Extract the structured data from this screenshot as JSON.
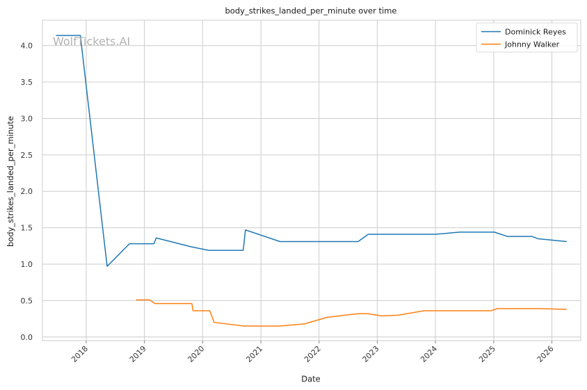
{
  "chart_data": {
    "type": "line",
    "title": "body_strikes_landed_per_minute over time",
    "xlabel": "Date",
    "ylabel": "body_strikes_landed_per_minute",
    "x_ticks": [
      "2018",
      "2019",
      "2020",
      "2021",
      "2022",
      "2023",
      "2024",
      "2025",
      "2026"
    ],
    "y_ticks": [
      "0.0",
      "0.5",
      "1.0",
      "1.5",
      "2.0",
      "2.5",
      "3.0",
      "3.5",
      "4.0"
    ],
    "xlim": [
      "2017-04-01",
      "2026-07-01"
    ],
    "ylim": [
      -0.05,
      4.35
    ],
    "grid": true,
    "legend_position": "top-right",
    "watermark": "WolfTickets.AI",
    "series": [
      {
        "name": "Dominick Reyes",
        "color": "#1f77b4",
        "points": [
          [
            "2017-06-25",
            4.14
          ],
          [
            "2017-11-25",
            4.14
          ],
          [
            "2018-05-12",
            0.97
          ],
          [
            "2018-09-29",
            1.28
          ],
          [
            "2019-03-02",
            1.28
          ],
          [
            "2019-03-16",
            1.36
          ],
          [
            "2019-10-19",
            1.24
          ],
          [
            "2019-11-09",
            1.23
          ],
          [
            "2020-02-08",
            1.19
          ],
          [
            "2020-09-12",
            1.19
          ],
          [
            "2020-09-26",
            1.47
          ],
          [
            "2021-05-01",
            1.31
          ],
          [
            "2022-09-03",
            1.31
          ],
          [
            "2022-11-05",
            1.41
          ],
          [
            "2024-01-01",
            1.41
          ],
          [
            "2024-06-01",
            1.44
          ],
          [
            "2025-01-05",
            1.44
          ],
          [
            "2025-03-29",
            1.38
          ],
          [
            "2025-08-30",
            1.38
          ],
          [
            "2025-10-04",
            1.35
          ],
          [
            "2026-04-04",
            1.31
          ]
        ]
      },
      {
        "name": "Johnny Walker",
        "color": "#ff7f0e",
        "points": [
          [
            "2018-11-10",
            0.51
          ],
          [
            "2019-02-02",
            0.51
          ],
          [
            "2019-03-09",
            0.46
          ],
          [
            "2019-10-26",
            0.46
          ],
          [
            "2019-11-02",
            0.36
          ],
          [
            "2020-02-15",
            0.36
          ],
          [
            "2020-03-14",
            0.2
          ],
          [
            "2020-09-19",
            0.15
          ],
          [
            "2021-05-01",
            0.15
          ],
          [
            "2021-10-02",
            0.18
          ],
          [
            "2022-02-19",
            0.27
          ],
          [
            "2022-09-03",
            0.32
          ],
          [
            "2022-11-05",
            0.32
          ],
          [
            "2023-01-28",
            0.29
          ],
          [
            "2023-05-13",
            0.3
          ],
          [
            "2023-10-21",
            0.36
          ],
          [
            "2024-06-01",
            0.36
          ],
          [
            "2024-12-14",
            0.36
          ],
          [
            "2025-01-25",
            0.39
          ],
          [
            "2025-10-04",
            0.39
          ],
          [
            "2026-04-04",
            0.38
          ]
        ]
      }
    ]
  }
}
